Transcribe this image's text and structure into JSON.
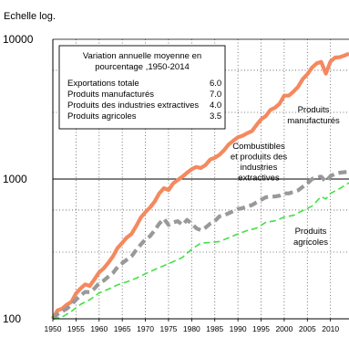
{
  "chart_data": {
    "type": "line",
    "scale_note": "Echelle log.",
    "yscale": "log",
    "ylim": [
      100,
      10000
    ],
    "xlim": [
      1950,
      2014
    ],
    "grid": "dotted",
    "y_ticks": [
      {
        "value": 100,
        "label": "100"
      },
      {
        "value": 1000,
        "label": "1000"
      },
      {
        "value": 10000,
        "label": "10000"
      }
    ],
    "x_ticks": [
      {
        "value": 1950,
        "label": "1950"
      },
      {
        "value": 1955,
        "label": "1955"
      },
      {
        "value": 1960,
        "label": "1960"
      },
      {
        "value": 1965,
        "label": "1965"
      },
      {
        "value": 1970,
        "label": "1970"
      },
      {
        "value": 1975,
        "label": "1975"
      },
      {
        "value": 1980,
        "label": "1980"
      },
      {
        "value": 1985,
        "label": "1985"
      },
      {
        "value": 1990,
        "label": "1990"
      },
      {
        "value": 1995,
        "label": "1995"
      },
      {
        "value": 2000,
        "label": "2000"
      },
      {
        "value": 2005,
        "label": "2005"
      },
      {
        "value": 2010,
        "label": "2010"
      }
    ],
    "legend_box": {
      "title": [
        "Variation annuelle moyenne en",
        "pourcentage ,1950-2014"
      ],
      "rows": [
        {
          "label": "Exportations totale",
          "value": "6.0"
        },
        {
          "label": "Produits manufacturés",
          "value": "7.0"
        },
        {
          "label": "Produits des  industries extractives",
          "value": "4.0"
        },
        {
          "label": "Produits agricoles",
          "value": "3.5"
        }
      ]
    },
    "series": [
      {
        "name": "Produits manufacturés",
        "color": "#f4895f",
        "style": "solid",
        "points": [
          [
            1950,
            100
          ],
          [
            1951,
            115
          ],
          [
            1952,
            118
          ],
          [
            1953,
            126
          ],
          [
            1954,
            132
          ],
          [
            1955,
            152
          ],
          [
            1956,
            165
          ],
          [
            1957,
            176
          ],
          [
            1958,
            172
          ],
          [
            1959,
            192
          ],
          [
            1960,
            215
          ],
          [
            1961,
            230
          ],
          [
            1962,
            252
          ],
          [
            1963,
            280
          ],
          [
            1964,
            322
          ],
          [
            1965,
            350
          ],
          [
            1966,
            382
          ],
          [
            1967,
            405
          ],
          [
            1968,
            460
          ],
          [
            1969,
            530
          ],
          [
            1970,
            580
          ],
          [
            1971,
            625
          ],
          [
            1972,
            690
          ],
          [
            1973,
            790
          ],
          [
            1974,
            860
          ],
          [
            1975,
            835
          ],
          [
            1976,
            930
          ],
          [
            1977,
            985
          ],
          [
            1978,
            1040
          ],
          [
            1979,
            1110
          ],
          [
            1980,
            1175
          ],
          [
            1981,
            1220
          ],
          [
            1982,
            1200
          ],
          [
            1983,
            1260
          ],
          [
            1984,
            1380
          ],
          [
            1985,
            1420
          ],
          [
            1986,
            1490
          ],
          [
            1987,
            1610
          ],
          [
            1988,
            1770
          ],
          [
            1989,
            1880
          ],
          [
            1990,
            1990
          ],
          [
            1991,
            2040
          ],
          [
            1992,
            2130
          ],
          [
            1993,
            2200
          ],
          [
            1994,
            2430
          ],
          [
            1995,
            2670
          ],
          [
            1996,
            2820
          ],
          [
            1997,
            3120
          ],
          [
            1998,
            3240
          ],
          [
            1999,
            3460
          ],
          [
            2000,
            3950
          ],
          [
            2001,
            3950
          ],
          [
            2002,
            4230
          ],
          [
            2003,
            4570
          ],
          [
            2004,
            5190
          ],
          [
            2005,
            5620
          ],
          [
            2006,
            6270
          ],
          [
            2007,
            6720
          ],
          [
            2008,
            6880
          ],
          [
            2009,
            5680
          ],
          [
            2010,
            6940
          ],
          [
            2011,
            7400
          ],
          [
            2012,
            7450
          ],
          [
            2013,
            7650
          ],
          [
            2014,
            7900
          ]
        ]
      },
      {
        "name": "Combustibles et produits des industries extractives",
        "color": "#999999",
        "style": "dashed",
        "points": [
          [
            1950,
            100
          ],
          [
            1951,
            108
          ],
          [
            1952,
            113
          ],
          [
            1953,
            118
          ],
          [
            1954,
            126
          ],
          [
            1955,
            137
          ],
          [
            1956,
            147
          ],
          [
            1957,
            156
          ],
          [
            1958,
            155
          ],
          [
            1959,
            165
          ],
          [
            1960,
            180
          ],
          [
            1961,
            188
          ],
          [
            1962,
            200
          ],
          [
            1963,
            213
          ],
          [
            1964,
            235
          ],
          [
            1965,
            250
          ],
          [
            1966,
            265
          ],
          [
            1967,
            280
          ],
          [
            1968,
            310
          ],
          [
            1969,
            340
          ],
          [
            1970,
            370
          ],
          [
            1971,
            390
          ],
          [
            1972,
            430
          ],
          [
            1973,
            480
          ],
          [
            1974,
            520
          ],
          [
            1975,
            470
          ],
          [
            1976,
            490
          ],
          [
            1977,
            500
          ],
          [
            1978,
            470
          ],
          [
            1979,
            510
          ],
          [
            1980,
            480
          ],
          [
            1981,
            445
          ],
          [
            1982,
            430
          ],
          [
            1983,
            450
          ],
          [
            1984,
            480
          ],
          [
            1985,
            500
          ],
          [
            1986,
            540
          ],
          [
            1987,
            550
          ],
          [
            1988,
            570
          ],
          [
            1989,
            590
          ],
          [
            1990,
            610
          ],
          [
            1991,
            620
          ],
          [
            1992,
            640
          ],
          [
            1993,
            650
          ],
          [
            1994,
            680
          ],
          [
            1995,
            710
          ],
          [
            1996,
            740
          ],
          [
            1997,
            750
          ],
          [
            1998,
            750
          ],
          [
            1999,
            760
          ],
          [
            2000,
            790
          ],
          [
            2001,
            790
          ],
          [
            2002,
            810
          ],
          [
            2003,
            830
          ],
          [
            2004,
            880
          ],
          [
            2005,
            930
          ],
          [
            2006,
            1000
          ],
          [
            2007,
            1030
          ],
          [
            2008,
            1040
          ],
          [
            2009,
            960
          ],
          [
            2010,
            1050
          ],
          [
            2011,
            1090
          ],
          [
            2012,
            1110
          ],
          [
            2013,
            1120
          ],
          [
            2014,
            1130
          ]
        ]
      },
      {
        "name": "Produits agricoles",
        "color": "#44e044",
        "style": "dashed",
        "points": [
          [
            1950,
            100
          ],
          [
            1952,
            103
          ],
          [
            1954,
            113
          ],
          [
            1956,
            127
          ],
          [
            1958,
            137
          ],
          [
            1960,
            153
          ],
          [
            1962,
            163
          ],
          [
            1964,
            175
          ],
          [
            1966,
            184
          ],
          [
            1968,
            195
          ],
          [
            1970,
            210
          ],
          [
            1972,
            225
          ],
          [
            1974,
            240
          ],
          [
            1976,
            256
          ],
          [
            1978,
            275
          ],
          [
            1980,
            315
          ],
          [
            1982,
            348
          ],
          [
            1984,
            352
          ],
          [
            1986,
            357
          ],
          [
            1988,
            380
          ],
          [
            1990,
            405
          ],
          [
            1992,
            428
          ],
          [
            1994,
            445
          ],
          [
            1996,
            490
          ],
          [
            1998,
            503
          ],
          [
            2000,
            535
          ],
          [
            2002,
            550
          ],
          [
            2004,
            595
          ],
          [
            2006,
            640
          ],
          [
            2008,
            750
          ],
          [
            2009,
            720
          ],
          [
            2010,
            790
          ],
          [
            2012,
            855
          ],
          [
            2014,
            940
          ]
        ]
      }
    ],
    "annotations": [
      {
        "series": 0,
        "lines": [
          "Produits",
          "manufacturés"
        ]
      },
      {
        "series": 1,
        "lines": [
          "Combustibles",
          "et produits des",
          "industries",
          "extractives"
        ]
      },
      {
        "series": 2,
        "lines": [
          "Produits",
          "agricoles"
        ]
      }
    ]
  }
}
